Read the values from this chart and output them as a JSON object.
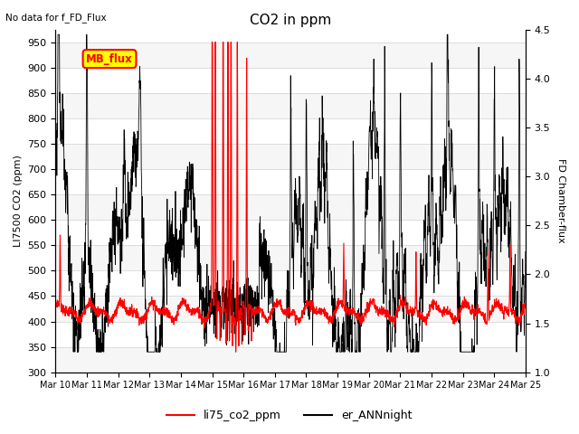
{
  "title": "CO2 in ppm",
  "subtitle": "No data for f_FD_Flux",
  "ylabel_left": "LI7500 CO2 (ppm)",
  "ylabel_right": "FD Chamber-flux",
  "ylim_left": [
    300,
    975
  ],
  "ylim_right": [
    1.0,
    4.5
  ],
  "yticks_left": [
    300,
    350,
    400,
    450,
    500,
    550,
    600,
    650,
    700,
    750,
    800,
    850,
    900,
    950
  ],
  "yticks_right": [
    1.0,
    1.5,
    2.0,
    2.5,
    3.0,
    3.5,
    4.0,
    4.5
  ],
  "xticklabels": [
    "Mar 10",
    "Mar 11",
    "Mar 12",
    "Mar 13",
    "Mar 14",
    "Mar 15",
    "Mar 16",
    "Mar 17",
    "Mar 18",
    "Mar 19",
    "Mar 20",
    "Mar 21",
    "Mar 22",
    "Mar 23",
    "Mar 24",
    "Mar 25"
  ],
  "legend_entries": [
    "li75_co2_ppm",
    "er_ANNnight"
  ],
  "line1_color": "#ff0000",
  "line2_color": "#000000",
  "annotation_box_text": "MB_flux",
  "annotation_box_color": "#ffff00",
  "annotation_box_edge_color": "#ff0000",
  "background_color": "#ffffff",
  "grid_color": "#d8d8d8",
  "fig_background": "#ffffff",
  "figsize": [
    6.4,
    4.8
  ],
  "dpi": 100
}
